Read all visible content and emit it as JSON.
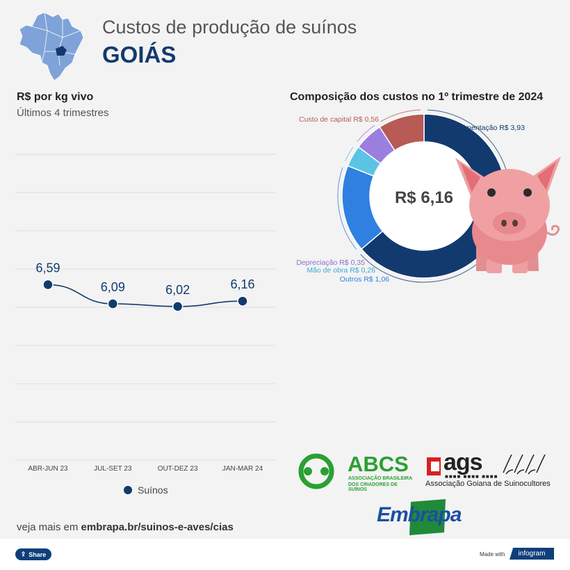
{
  "header": {
    "title": "Custos de produção de suínos",
    "state": "GOIÁS"
  },
  "line_chart": {
    "title": "R$ por kg vivo",
    "subtitle": "Últimos 4 trimestres",
    "legend": "Suínos"
  },
  "donut_chart": {
    "title": "Composição dos custos no 1º trimestre de 2024",
    "center_label": "R$ 6,16"
  },
  "chart_data": [
    {
      "type": "line",
      "title": "R$ por kg vivo",
      "subtitle": "Últimos 4 trimestres",
      "categories": [
        "ABR-JUN 23",
        "JUL-SET 23",
        "OUT-DEZ 23",
        "JAN-MAR 24"
      ],
      "series": [
        {
          "name": "Suínos",
          "values": [
            6.59,
            6.09,
            6.02,
            6.16
          ],
          "labels": [
            "6,59",
            "6,09",
            "6,02",
            "6,16"
          ]
        }
      ],
      "ylim": [
        2.0,
        10.0
      ],
      "grid": true,
      "legend_position": "bottom"
    },
    {
      "type": "pie",
      "title": "Composição dos custos no 1º trimestre de 2024",
      "center": "R$ 6,16",
      "slices": [
        {
          "label": "Alimentação R$ 3,93",
          "value": 3.93,
          "color": "#123a6e"
        },
        {
          "label": "Outros R$ 1,06",
          "value": 1.06,
          "color": "#2f80e0"
        },
        {
          "label": "Mão de obra R$ 0,26",
          "value": 0.26,
          "color": "#5bc4e4"
        },
        {
          "label": "Depreciação R$ 0,35",
          "value": 0.35,
          "color": "#9b7fe0"
        },
        {
          "label": "Custo de capital R$ 0,56",
          "value": 0.56,
          "color": "#b85a56"
        }
      ]
    }
  ],
  "logos": {
    "abcs_name": "ABCS",
    "abcs_sub1": "ASSOCIAÇÃO BRASILEIRA",
    "abcs_sub2": "DOS CRIADORES DE SUÍNOS",
    "ags_name": "ags",
    "ags_sub": "Associação Goiana de Suinocultores",
    "embrapa": "Embrapa"
  },
  "footer": {
    "prefix": "veja mais em ",
    "link": "embrapa.br/suinos-e-aves/cias",
    "share": "Share",
    "made_with": "Made with",
    "brand": "infogram"
  },
  "colors": {
    "navy": "#123a6e",
    "line": "#123a6e",
    "pig": "#f0a0a2"
  }
}
